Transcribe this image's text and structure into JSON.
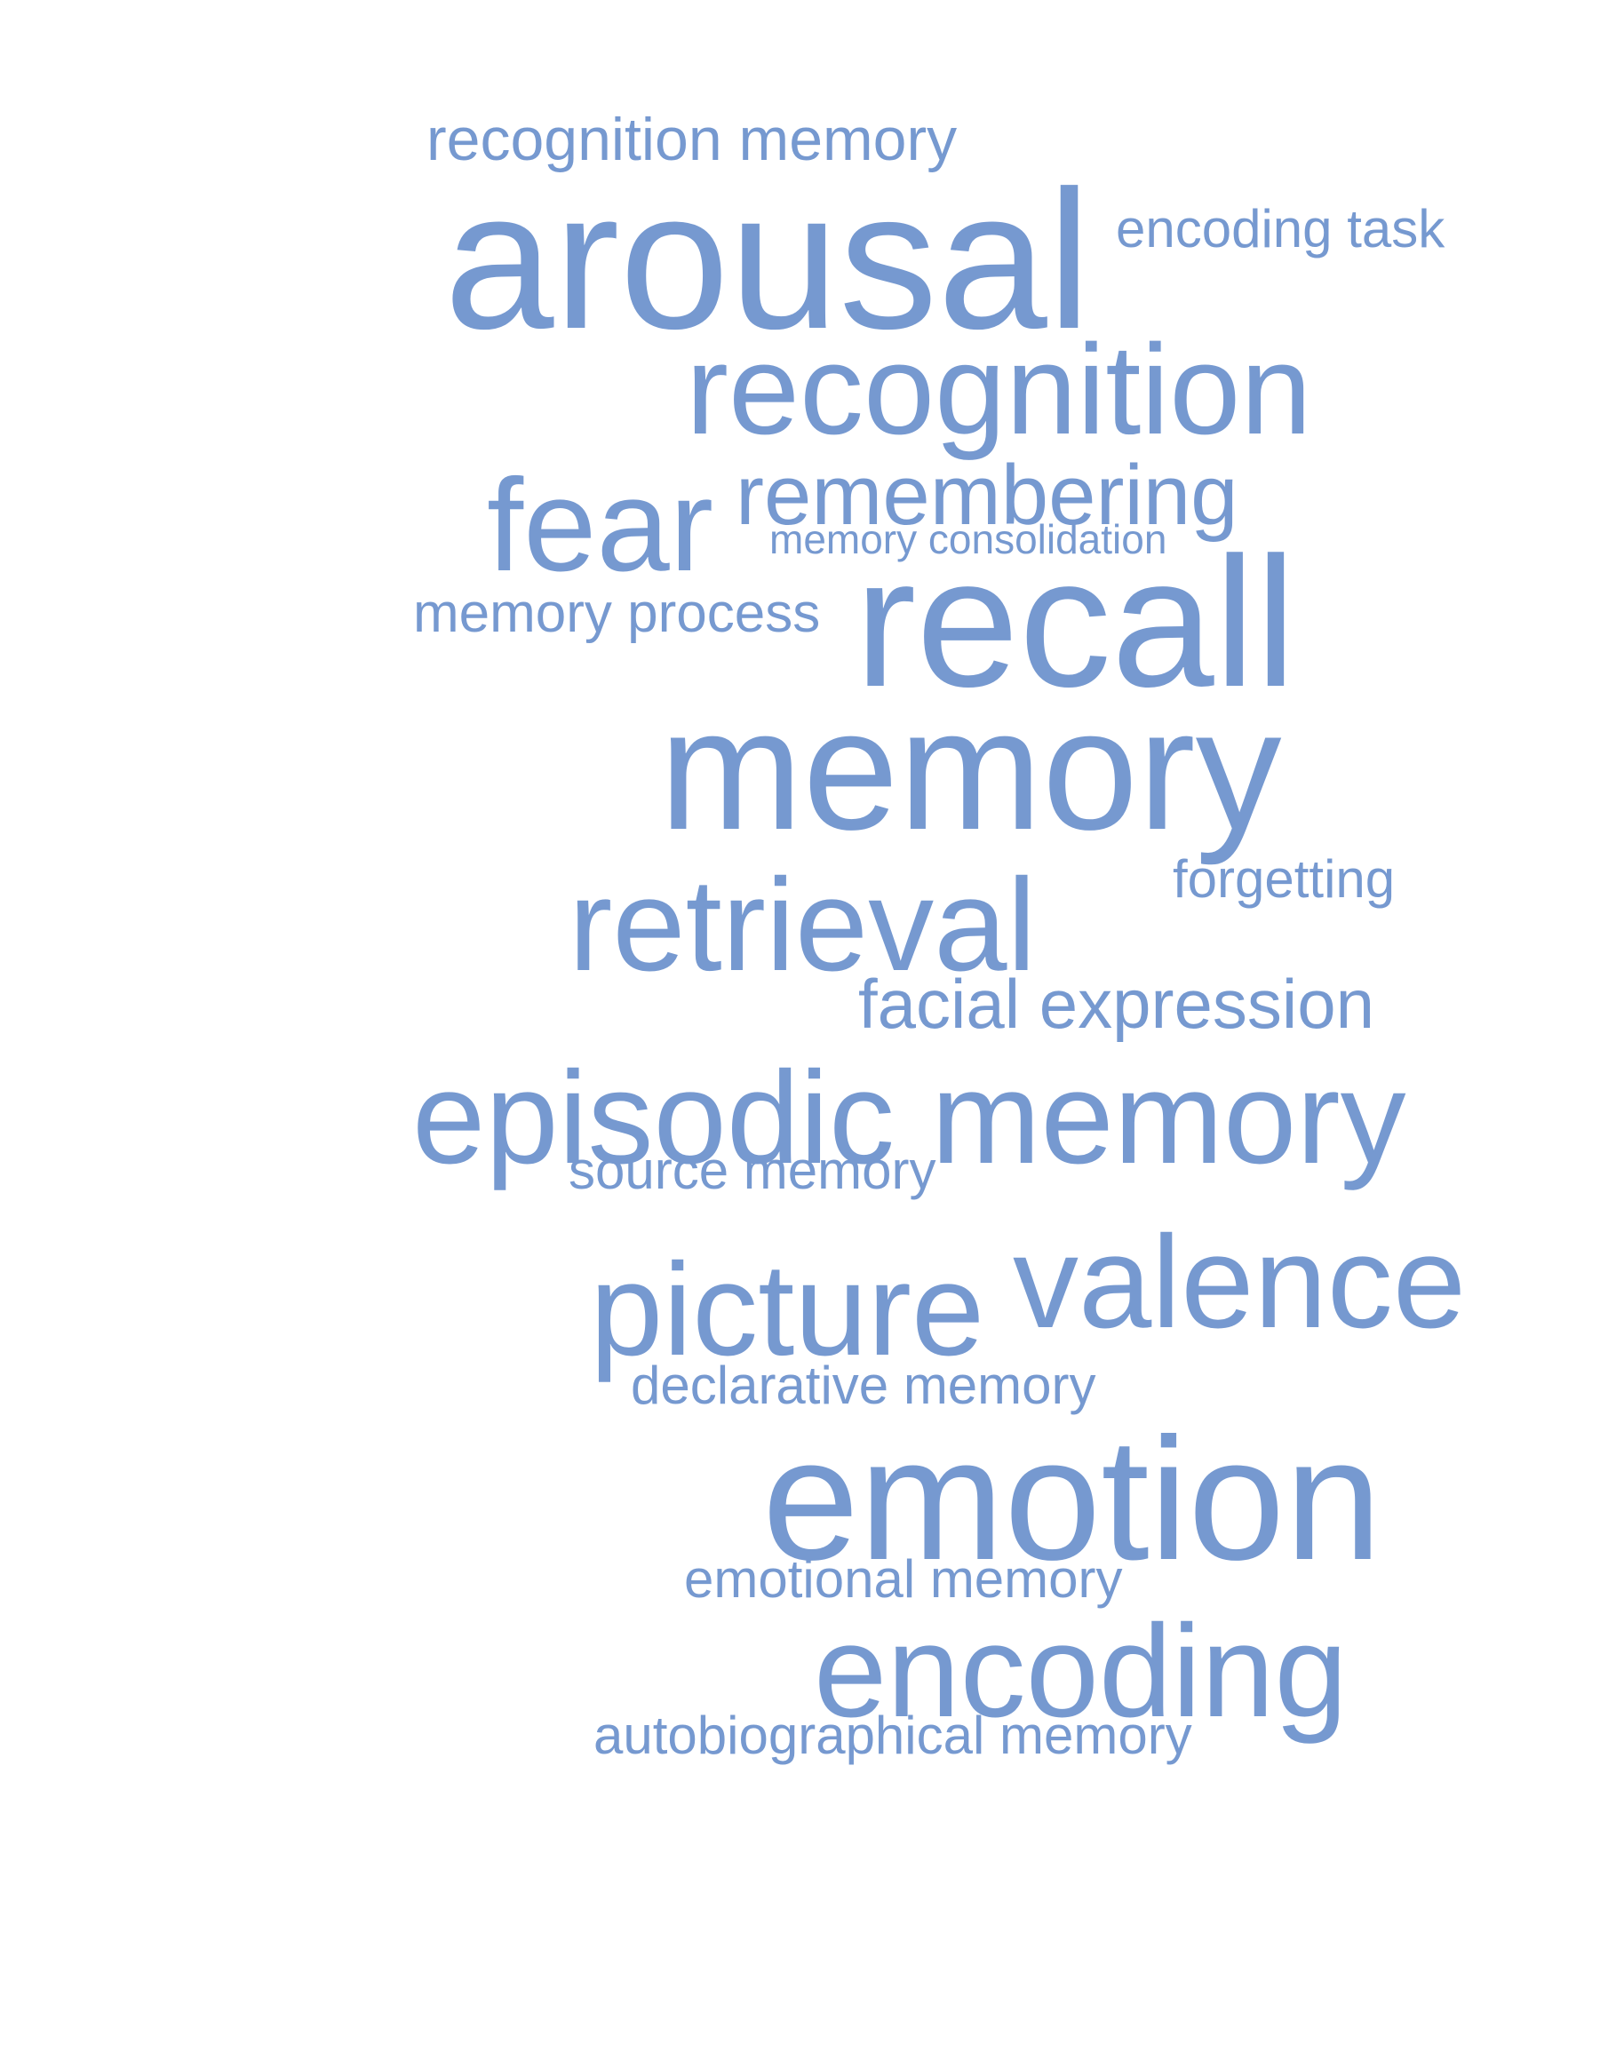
{
  "color": "#7699d0",
  "words": [
    {
      "id": "recognition-memory",
      "text": "recognition memory"
    },
    {
      "id": "arousal",
      "text": "arousal"
    },
    {
      "id": "encoding-task",
      "text": "encoding task"
    },
    {
      "id": "recognition",
      "text": "recognition"
    },
    {
      "id": "fear",
      "text": "fear"
    },
    {
      "id": "remembering",
      "text": "remembering"
    },
    {
      "id": "memory-consolidation",
      "text": "memory consolidation"
    },
    {
      "id": "memory-process",
      "text": "memory process"
    },
    {
      "id": "recall",
      "text": "recall"
    },
    {
      "id": "memory",
      "text": "memory"
    },
    {
      "id": "forgetting",
      "text": "forgetting"
    },
    {
      "id": "retrieval",
      "text": "retrieval"
    },
    {
      "id": "facial-expression",
      "text": "facial expression"
    },
    {
      "id": "episodic-memory",
      "text": "episodic memory"
    },
    {
      "id": "source-memory",
      "text": "source memory"
    },
    {
      "id": "picture",
      "text": "picture"
    },
    {
      "id": "valence",
      "text": "valence"
    },
    {
      "id": "declarative-memory",
      "text": "declarative memory"
    },
    {
      "id": "emotion",
      "text": "emotion"
    },
    {
      "id": "emotional-memory",
      "text": "emotional memory"
    },
    {
      "id": "encoding",
      "text": "encoding"
    },
    {
      "id": "autobiographical-memory",
      "text": "autobiographical memory"
    }
  ]
}
